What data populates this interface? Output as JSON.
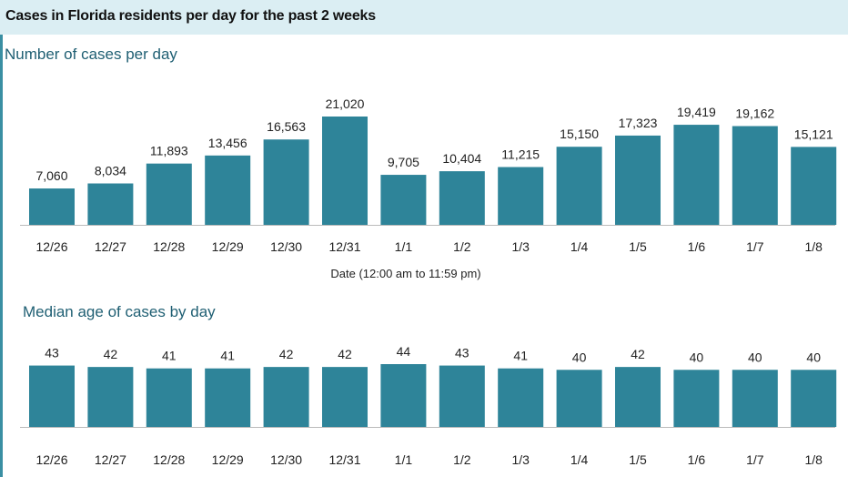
{
  "header": {
    "title": "Cases in Florida residents per day for the past 2 weeks"
  },
  "colors": {
    "bar": "#2e8499",
    "header_bg": "#dbeef3",
    "title": "#1f5f73",
    "axis": "#bbbbbb"
  },
  "chart_data": [
    {
      "type": "bar",
      "title": "Number of cases per day",
      "xlabel": "Date (12:00 am to 11:59 pm)",
      "ylabel": "",
      "categories": [
        "12/26",
        "12/27",
        "12/28",
        "12/29",
        "12/30",
        "12/31",
        "1/1",
        "1/2",
        "1/3",
        "1/4",
        "1/5",
        "1/6",
        "1/7",
        "1/8"
      ],
      "values": [
        7060,
        8034,
        11893,
        13456,
        16563,
        21020,
        9705,
        10404,
        11215,
        15150,
        17323,
        19419,
        19162,
        15121
      ],
      "value_labels": [
        "7,060",
        "8,034",
        "11,893",
        "13,456",
        "16,563",
        "21,020",
        "9,705",
        "10,404",
        "11,215",
        "15,150",
        "17,323",
        "19,419",
        "19,162",
        "15,121"
      ],
      "ylim": [
        0,
        21020
      ]
    },
    {
      "type": "bar",
      "title": "Median age of cases by day",
      "xlabel": "",
      "ylabel": "",
      "categories": [
        "12/26",
        "12/27",
        "12/28",
        "12/29",
        "12/30",
        "12/31",
        "1/1",
        "1/2",
        "1/3",
        "1/4",
        "1/5",
        "1/6",
        "1/7",
        "1/8"
      ],
      "values": [
        43,
        42,
        41,
        41,
        42,
        42,
        44,
        43,
        41,
        40,
        42,
        40,
        40,
        40
      ],
      "value_labels": [
        "43",
        "42",
        "41",
        "41",
        "42",
        "42",
        "44",
        "43",
        "41",
        "40",
        "42",
        "40",
        "40",
        "40"
      ],
      "ylim": [
        0,
        44
      ]
    }
  ]
}
